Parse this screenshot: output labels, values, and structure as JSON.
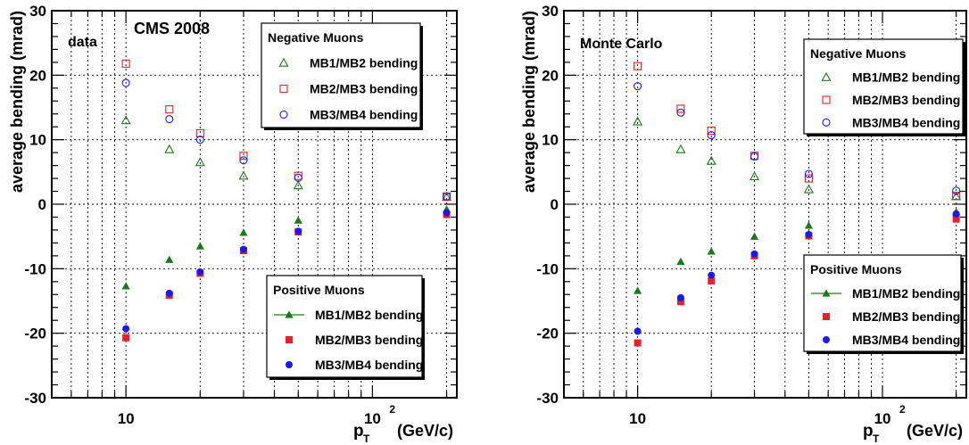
{
  "chart_data": [
    {
      "type": "scatter",
      "panel_label": "data",
      "title": "CMS 2008",
      "xlabel_main": "p",
      "xlabel_sub": "T",
      "xlabel_unit": "(GeV/c)",
      "ylabel": "average bending (mrad)",
      "xscale": "log",
      "xlim": [
        5,
        220
      ],
      "ylim": [
        -30,
        30
      ],
      "yticks": [
        -30,
        -20,
        -10,
        0,
        10,
        20,
        30
      ],
      "xtick_labels": [
        {
          "value": 10,
          "base": "10",
          "exp": ""
        },
        {
          "value": 100,
          "base": "10",
          "exp": "2"
        }
      ],
      "grid": true,
      "x": [
        10,
        15,
        20,
        30,
        50,
        200
      ],
      "legends": [
        {
          "title": "Negative Muons",
          "placement": "top-right",
          "entries": [
            "MB1/MB2 bending",
            "MB2/MB3 bending",
            "MB3/MB4 bending"
          ]
        },
        {
          "title": "Positive Muons",
          "placement": "bottom-right",
          "entries": [
            "MB1/MB2 bending",
            "MB2/MB3 bending",
            "MB3/MB4 bending"
          ]
        }
      ],
      "series": [
        {
          "group": "Negative Muons",
          "name": "MB1/MB2 bending",
          "marker": "open-triangle",
          "color": "#1a7a1a",
          "values": [
            13.0,
            8.5,
            6.5,
            4.4,
            2.9,
            1.1
          ]
        },
        {
          "group": "Negative Muons",
          "name": "MB2/MB3 bending",
          "marker": "open-square",
          "color": "#e8202a",
          "values": [
            21.8,
            14.7,
            11.0,
            7.5,
            4.4,
            1.2
          ]
        },
        {
          "group": "Negative Muons",
          "name": "MB3/MB4 bending",
          "marker": "open-circle",
          "color": "#1a1aee",
          "values": [
            18.8,
            13.2,
            10.0,
            6.8,
            4.1,
            1.2
          ]
        },
        {
          "group": "Positive Muons",
          "name": "MB1/MB2 bending",
          "marker": "filled-triangle",
          "color": "#1a7a1a",
          "values": [
            -12.7,
            -8.6,
            -6.5,
            -4.4,
            -2.5,
            -0.8
          ]
        },
        {
          "group": "Positive Muons",
          "name": "MB2/MB3 bending",
          "marker": "filled-square",
          "color": "#e8202a",
          "values": [
            -20.7,
            -14.1,
            -10.7,
            -7.2,
            -4.3,
            -1.6
          ]
        },
        {
          "group": "Positive Muons",
          "name": "MB3/MB4 bending",
          "marker": "filled-circle",
          "color": "#1a1aee",
          "values": [
            -19.3,
            -13.8,
            -10.5,
            -7.0,
            -4.2,
            -1.3
          ]
        }
      ]
    },
    {
      "type": "scatter",
      "panel_label": "Monte Carlo",
      "title": "",
      "xlabel_main": "p",
      "xlabel_sub": "T",
      "xlabel_unit": "(GeV/c)",
      "ylabel": "average bending (mrad)",
      "xscale": "log",
      "xlim": [
        5,
        220
      ],
      "ylim": [
        -30,
        30
      ],
      "yticks": [
        -30,
        -20,
        -10,
        0,
        10,
        20,
        30
      ],
      "xtick_labels": [
        {
          "value": 10,
          "base": "10",
          "exp": ""
        },
        {
          "value": 100,
          "base": "10",
          "exp": "2"
        }
      ],
      "grid": true,
      "x": [
        10,
        15,
        20,
        30,
        50,
        200
      ],
      "legends": [
        {
          "title": "Negative Muons",
          "placement": "top-right",
          "entries": [
            "MB1/MB2 bending",
            "MB2/MB3 bending",
            "MB3/MB4 bending"
          ]
        },
        {
          "title": "Positive Muons",
          "placement": "bottom-right",
          "entries": [
            "MB1/MB2 bending",
            "MB2/MB3 bending",
            "MB3/MB4 bending"
          ]
        }
      ],
      "series": [
        {
          "group": "Negative Muons",
          "name": "MB1/MB2 bending",
          "marker": "open-triangle",
          "color": "#1a7a1a",
          "values": [
            12.8,
            8.5,
            6.7,
            4.3,
            2.3,
            1.2
          ]
        },
        {
          "group": "Negative Muons",
          "name": "MB2/MB3 bending",
          "marker": "open-square",
          "color": "#e8202a",
          "values": [
            21.4,
            14.8,
            11.4,
            7.5,
            4.0,
            1.3
          ]
        },
        {
          "group": "Negative Muons",
          "name": "MB3/MB4 bending",
          "marker": "open-circle",
          "color": "#1a1aee",
          "values": [
            18.3,
            14.2,
            10.7,
            7.4,
            4.7,
            2.1
          ]
        },
        {
          "group": "Positive Muons",
          "name": "MB1/MB2 bending",
          "marker": "filled-triangle",
          "color": "#1a7a1a",
          "values": [
            -13.4,
            -8.9,
            -7.3,
            -5.0,
            -3.3,
            -1.2
          ]
        },
        {
          "group": "Positive Muons",
          "name": "MB2/MB3 bending",
          "marker": "filled-square",
          "color": "#e8202a",
          "values": [
            -21.5,
            -15.1,
            -11.9,
            -8.0,
            -4.9,
            -2.3
          ]
        },
        {
          "group": "Positive Muons",
          "name": "MB3/MB4 bending",
          "marker": "filled-circle",
          "color": "#1a1aee",
          "values": [
            -19.7,
            -14.5,
            -11.0,
            -7.7,
            -4.7,
            -1.5
          ]
        }
      ]
    }
  ]
}
